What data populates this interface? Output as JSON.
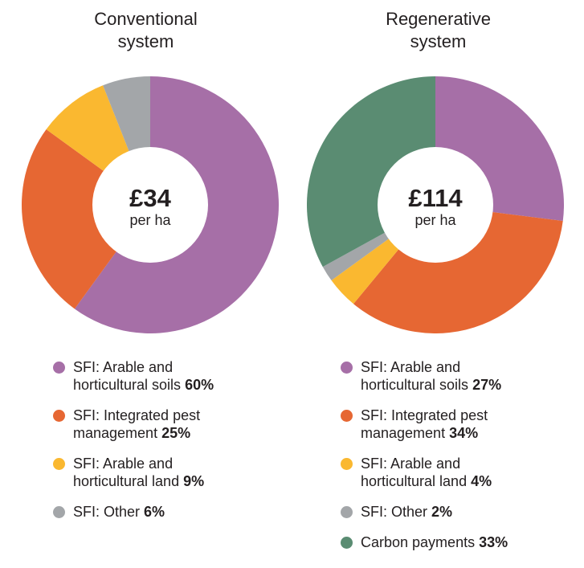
{
  "colors": {
    "arable_soils": "#a66fa7",
    "pest_management": "#e66733",
    "arable_land": "#fab830",
    "other": "#a3a6a9",
    "carbon": "#5a8c72"
  },
  "chart_data": [
    {
      "type": "pie",
      "title_lines": [
        "Conventional",
        "system"
      ],
      "center_value": "£34",
      "center_unit": "per ha",
      "slices": [
        {
          "label_lines": [
            "SFI: Arable and",
            "horticultural soils"
          ],
          "percent": "60%",
          "value": 60,
          "color_key": "arable_soils"
        },
        {
          "label_lines": [
            "SFI: Integrated pest",
            "management"
          ],
          "percent": "25%",
          "value": 25,
          "color_key": "pest_management"
        },
        {
          "label_lines": [
            "SFI: Arable and",
            "horticultural land"
          ],
          "percent": "9%",
          "value": 9,
          "color_key": "arable_land"
        },
        {
          "label_lines": [
            "SFI: Other"
          ],
          "percent": "6%",
          "value": 6,
          "color_key": "other"
        }
      ]
    },
    {
      "type": "pie",
      "title_lines": [
        "Regenerative",
        "system"
      ],
      "center_value": "£114",
      "center_unit": "per ha",
      "slices": [
        {
          "label_lines": [
            "SFI: Arable and",
            "horticultural soils"
          ],
          "percent": "27%",
          "value": 27,
          "color_key": "arable_soils"
        },
        {
          "label_lines": [
            "SFI: Integrated pest",
            "management"
          ],
          "percent": "34%",
          "value": 34,
          "color_key": "pest_management"
        },
        {
          "label_lines": [
            "SFI: Arable and",
            "horticultural land"
          ],
          "percent": "4%",
          "value": 4,
          "color_key": "arable_land"
        },
        {
          "label_lines": [
            "SFI: Other"
          ],
          "percent": "2%",
          "value": 2,
          "color_key": "other"
        },
        {
          "label_lines": [
            "Carbon payments"
          ],
          "percent": "33%",
          "value": 33,
          "color_key": "carbon"
        }
      ]
    }
  ]
}
